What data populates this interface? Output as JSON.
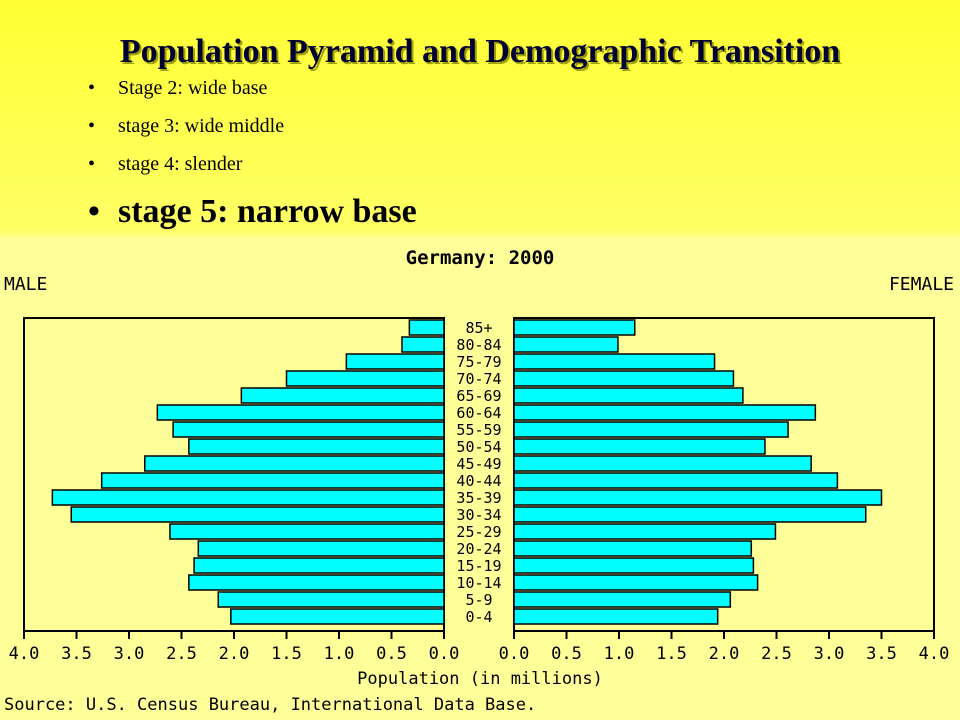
{
  "slide": {
    "title": "Population Pyramid and Demographic Transition",
    "bullets": [
      "Stage 2: wide base",
      "stage 3: wide middle",
      "stage 4: slender",
      "stage 5: narrow base"
    ],
    "bullet_glyph": "•"
  },
  "colors": {
    "title": "#000033",
    "background": "#ffff66",
    "bar_fill": "#00ffff",
    "bar_stroke": "#000000"
  },
  "chart_data": {
    "type": "bar",
    "orientation": "horizontal-pyramid",
    "title": "Germany: 2000",
    "xlabel": "Population (in millions)",
    "source": "Source: U.S. Census Bureau, International Data Base.",
    "left_label": "MALE",
    "right_label": "FEMALE",
    "xlim": [
      0,
      4.0
    ],
    "xticks": [
      "4.0",
      "3.5",
      "3.0",
      "2.5",
      "2.0",
      "1.5",
      "1.0",
      "0.5",
      "0.0"
    ],
    "xticks_right": [
      "0.0",
      "0.5",
      "1.0",
      "1.5",
      "2.0",
      "2.5",
      "3.0",
      "3.5",
      "4.0"
    ],
    "categories": [
      "85+",
      "80-84",
      "75-79",
      "70-74",
      "65-69",
      "60-64",
      "55-59",
      "50-54",
      "45-49",
      "40-44",
      "35-39",
      "30-34",
      "25-29",
      "20-24",
      "15-19",
      "10-14",
      "5-9",
      "0-4"
    ],
    "series": [
      {
        "name": "MALE",
        "values": [
          0.33,
          0.4,
          0.93,
          1.5,
          1.93,
          2.73,
          2.58,
          2.43,
          2.85,
          3.26,
          3.73,
          3.55,
          2.61,
          2.34,
          2.38,
          2.43,
          2.15,
          2.03
        ]
      },
      {
        "name": "FEMALE",
        "values": [
          1.15,
          0.99,
          1.91,
          2.09,
          2.18,
          2.87,
          2.61,
          2.39,
          2.83,
          3.08,
          3.5,
          3.35,
          2.49,
          2.26,
          2.28,
          2.32,
          2.06,
          1.94
        ]
      }
    ],
    "grid": false,
    "legend": "none"
  }
}
